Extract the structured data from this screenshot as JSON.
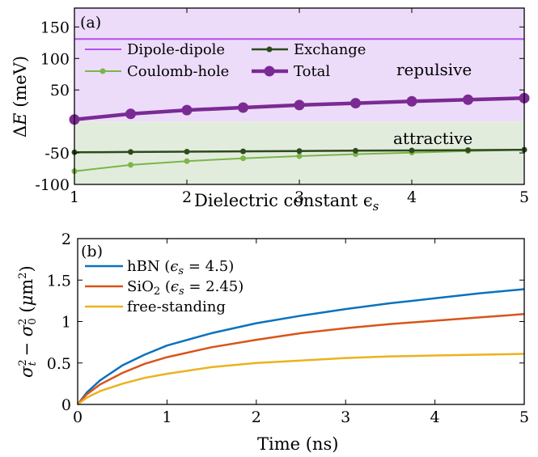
{
  "chart_data": [
    {
      "type": "line",
      "panel_label": "(a)",
      "xlabel": "Dielectric constant ϵ",
      "xlabel_sub": "s",
      "ylabel_delta": "Δ",
      "ylabel_var": "E",
      "ylabel_unit": " (meV)",
      "xlim": [
        1,
        5
      ],
      "ylim": [
        -100,
        180
      ],
      "xticks": [
        1,
        2,
        3,
        4,
        5
      ],
      "yticks": [
        -100,
        -50,
        50,
        100,
        150
      ],
      "ytick_labels": [
        "-100",
        "-50",
        "50",
        "100",
        "150"
      ],
      "regions": [
        {
          "label": "repulsive",
          "y_from": 0,
          "y_to": 180,
          "color": "#ecdcfa"
        },
        {
          "label": "attractive",
          "y_from": -100,
          "y_to": 0,
          "color": "#e2ecdd"
        }
      ],
      "legend_placement": "upper-left",
      "series": [
        {
          "name": "Dipole-dipole",
          "color": "#b44ff0",
          "marker": "none",
          "width": 2,
          "x": [
            1,
            5
          ],
          "y": [
            131,
            131
          ]
        },
        {
          "name": "Coulomb-hole",
          "color": "#7ab648",
          "marker": "small",
          "width": 2,
          "x": [
            1,
            1.5,
            2,
            2.5,
            3,
            3.5,
            4,
            4.5,
            5
          ],
          "y": [
            -79,
            -69,
            -63,
            -58.5,
            -55,
            -52,
            -49.5,
            -47,
            -45
          ]
        },
        {
          "name": "Exchange",
          "color": "#2e4a1c",
          "marker": "small",
          "width": 2.5,
          "x": [
            1,
            1.5,
            2,
            2.5,
            3,
            3.5,
            4,
            4.5,
            5
          ],
          "y": [
            -49,
            -48.5,
            -48,
            -47.5,
            -47,
            -46.5,
            -46,
            -45.5,
            -45
          ]
        },
        {
          "name": "Total",
          "color": "#7b2a93",
          "marker": "large",
          "width": 4.5,
          "x": [
            1,
            1.5,
            2,
            2.5,
            3,
            3.5,
            4,
            4.5,
            5
          ],
          "y": [
            3,
            12,
            18,
            22,
            26,
            29,
            32,
            34.5,
            37
          ]
        }
      ]
    },
    {
      "type": "line",
      "panel_label": "(b)",
      "xlabel": "Time (ns)",
      "xlim": [
        0,
        5
      ],
      "ylim": [
        0,
        2
      ],
      "xticks": [
        0,
        1,
        2,
        3,
        4,
        5
      ],
      "yticks": [
        0,
        0.5,
        1,
        1.5,
        2
      ],
      "ytick_labels": [
        "0",
        "0.5",
        "1",
        "1.5",
        "2"
      ],
      "legend_placement": "upper-left",
      "series": [
        {
          "name": "hBN (ϵs = 4.5)",
          "legend_main": "hBN (",
          "legend_var": "ϵ",
          "legend_sub": "s",
          "legend_rest": " = 4.5)",
          "color": "#0a72bd",
          "width": 2.5,
          "x": [
            0,
            0.1,
            0.25,
            0.5,
            0.75,
            1,
            1.5,
            2,
            2.5,
            3,
            3.5,
            4,
            4.5,
            5
          ],
          "y": [
            0,
            0.14,
            0.29,
            0.47,
            0.6,
            0.71,
            0.86,
            0.98,
            1.07,
            1.15,
            1.22,
            1.28,
            1.34,
            1.39
          ]
        },
        {
          "name": "SiO2 (ϵs = 2.45)",
          "legend_main": "SiO",
          "legend_sub2": "2",
          "legend_mid": " (",
          "legend_var": "ϵ",
          "legend_sub": "s",
          "legend_rest": " = 2.45)",
          "color": "#d9541a",
          "width": 2.5,
          "x": [
            0,
            0.1,
            0.25,
            0.5,
            0.75,
            1,
            1.5,
            2,
            2.5,
            3,
            3.5,
            4,
            4.5,
            5
          ],
          "y": [
            0,
            0.12,
            0.24,
            0.38,
            0.49,
            0.57,
            0.69,
            0.78,
            0.86,
            0.92,
            0.97,
            1.01,
            1.05,
            1.09
          ]
        },
        {
          "name": "free-standing",
          "color": "#edb120",
          "width": 2.5,
          "x": [
            0,
            0.1,
            0.25,
            0.5,
            0.75,
            1,
            1.5,
            2,
            2.5,
            3,
            3.5,
            4,
            4.5,
            5
          ],
          "y": [
            0,
            0.08,
            0.16,
            0.25,
            0.32,
            0.37,
            0.45,
            0.5,
            0.53,
            0.56,
            0.58,
            0.59,
            0.6,
            0.61
          ]
        }
      ]
    }
  ]
}
